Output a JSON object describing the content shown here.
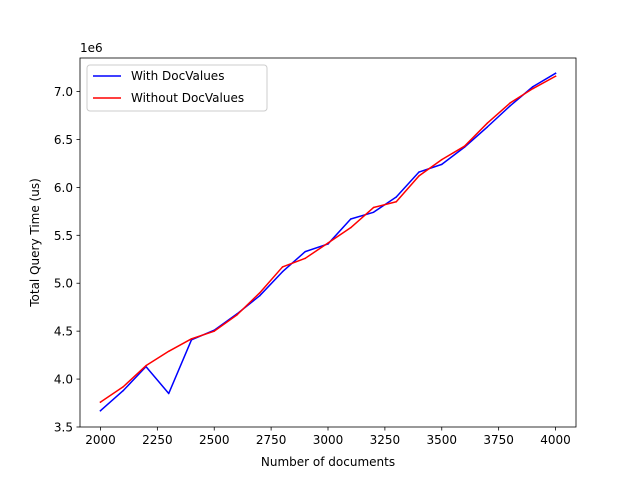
{
  "chart_data": {
    "type": "line",
    "title": "",
    "xlabel": "Number of documents",
    "ylabel": "Total Query Time (us)",
    "y_offset_label": "1e6",
    "xlim": [
      1910,
      4090
    ],
    "ylim": [
      3.5,
      7.35
    ],
    "x_ticks": [
      2000,
      2250,
      2500,
      2750,
      3000,
      3250,
      3500,
      3750,
      4000
    ],
    "x_tick_labels": [
      "2000",
      "2250",
      "2500",
      "2750",
      "3000",
      "3250",
      "3500",
      "3750",
      "4000"
    ],
    "y_ticks": [
      3.5,
      4.0,
      4.5,
      5.0,
      5.5,
      6.0,
      6.5,
      7.0
    ],
    "y_tick_labels": [
      "3.5",
      "4.0",
      "4.5",
      "5.0",
      "5.5",
      "6.0",
      "6.5",
      "7.0"
    ],
    "grid": false,
    "legend_position": "upper-left",
    "x": [
      2000,
      2100,
      2200,
      2300,
      2400,
      2500,
      2600,
      2700,
      2800,
      2900,
      3000,
      3100,
      3200,
      3300,
      3400,
      3500,
      3600,
      3700,
      3800,
      3900,
      4000
    ],
    "series": [
      {
        "name": "With DocValues",
        "color": "#0000ff",
        "values": [
          3.67,
          3.88,
          4.13,
          3.85,
          4.41,
          4.51,
          4.68,
          4.87,
          5.12,
          5.33,
          5.41,
          5.67,
          5.74,
          5.9,
          6.16,
          6.24,
          6.42,
          6.63,
          6.85,
          7.05,
          7.19
        ]
      },
      {
        "name": "Without DocValues",
        "color": "#ff0000",
        "values": [
          3.76,
          3.92,
          4.14,
          4.29,
          4.42,
          4.5,
          4.67,
          4.9,
          5.17,
          5.26,
          5.42,
          5.58,
          5.79,
          5.85,
          6.12,
          6.29,
          6.43,
          6.67,
          6.88,
          7.03,
          7.16
        ]
      }
    ]
  }
}
